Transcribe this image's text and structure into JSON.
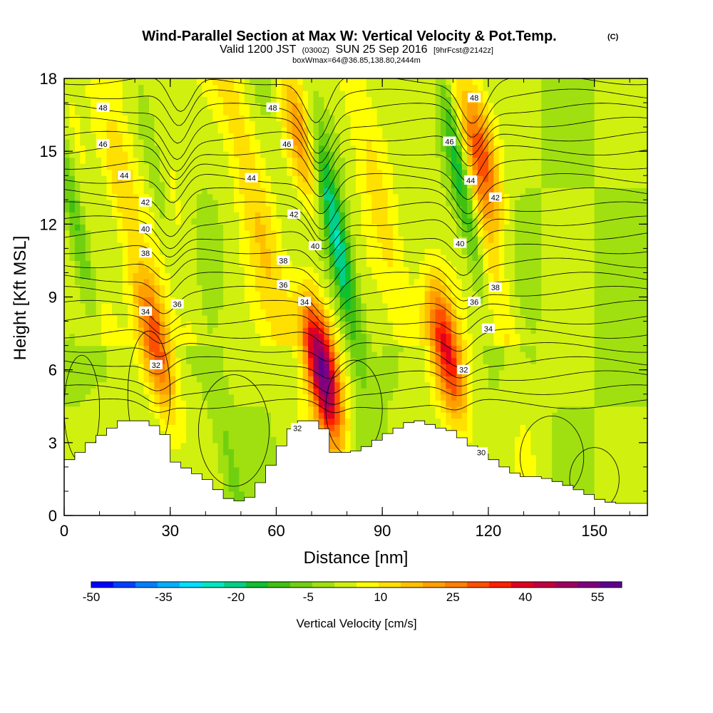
{
  "chart_data": {
    "type": "heatmap",
    "title": "Wind-Parallel Section at Max W: Vertical Velocity & Pot.Temp.",
    "title_mark": "(C)",
    "subtitle_parts": [
      "Valid 1200 JST",
      "(0300Z)",
      "SUN 25 Sep 2016",
      "[9hrFcst@2142z]"
    ],
    "info_line": "boxWmax=64@36.85,138.80,2444m",
    "xlabel": "Distance [nm]",
    "ylabel": "Height [Kft MSL]",
    "xlim": [
      0,
      165
    ],
    "ylim": [
      0,
      18
    ],
    "x_ticks": [
      "0",
      "30",
      "60",
      "90",
      "120",
      "150"
    ],
    "y_ticks": [
      "0",
      "3",
      "6",
      "9",
      "12",
      "15",
      "18"
    ],
    "colorbar": {
      "label": "Vertical Velocity [cm/s]",
      "range": [
        -50,
        60
      ],
      "step": 5,
      "tick_labels": [
        "-50",
        "-35",
        "-20",
        "-5",
        "10",
        "25",
        "40",
        "55"
      ],
      "colors": [
        "#0000ff",
        "#0040ff",
        "#0080ff",
        "#00b0ff",
        "#00e0ff",
        "#00e8c0",
        "#00d088",
        "#10c030",
        "#40c010",
        "#70d010",
        "#a0e010",
        "#d0f010",
        "#ffff00",
        "#ffe000",
        "#ffc000",
        "#ffa000",
        "#ff8000",
        "#ff5000",
        "#ff2000",
        "#e00020",
        "#c00040",
        "#a00060",
        "#800080",
        "#600090"
      ]
    },
    "terrain_kft": [
      [
        0,
        2.3
      ],
      [
        3,
        2.6
      ],
      [
        6,
        3.0
      ],
      [
        9,
        3.3
      ],
      [
        12,
        3.6
      ],
      [
        15,
        3.9
      ],
      [
        22,
        3.9
      ],
      [
        25,
        3.6
      ],
      [
        28,
        3.2
      ],
      [
        30,
        2.2
      ],
      [
        35,
        1.8
      ],
      [
        40,
        1.4
      ],
      [
        43,
        0.9
      ],
      [
        46,
        0.6
      ],
      [
        50,
        0.6
      ],
      [
        52,
        0.9
      ],
      [
        56,
        1.8
      ],
      [
        59,
        2.6
      ],
      [
        62,
        3.4
      ],
      [
        65,
        3.9
      ],
      [
        70,
        3.9
      ],
      [
        73,
        3.4
      ],
      [
        75,
        2.6
      ],
      [
        80,
        2.6
      ],
      [
        85,
        2.9
      ],
      [
        89,
        3.3
      ],
      [
        93,
        3.6
      ],
      [
        97,
        3.9
      ],
      [
        101,
        3.9
      ],
      [
        103,
        3.6
      ],
      [
        107,
        3.6
      ],
      [
        110,
        3.3
      ],
      [
        113,
        3.0
      ],
      [
        116,
        2.6
      ],
      [
        120,
        2.3
      ],
      [
        124,
        1.9
      ],
      [
        128,
        1.6
      ],
      [
        132,
        1.6
      ],
      [
        136,
        1.5
      ],
      [
        140,
        1.3
      ],
      [
        145,
        1.0
      ],
      [
        148,
        0.8
      ],
      [
        151,
        0.6
      ],
      [
        155,
        0.5
      ],
      [
        159,
        0.5
      ],
      [
        165,
        0.5
      ]
    ],
    "updraft_cores": [
      {
        "x": 73,
        "z": 6.0,
        "w": 62
      },
      {
        "x": 108,
        "z": 6.8,
        "w": 40
      },
      {
        "x": 26,
        "z": 7.0,
        "w": 32
      },
      {
        "x": 118,
        "z": 15.0,
        "w": 28
      },
      {
        "x": 67,
        "z": 15.5,
        "w": 22
      },
      {
        "x": 16,
        "z": 14.0,
        "w": 15
      }
    ],
    "downdraft_bands": [
      {
        "x": 2,
        "z": 13.0,
        "w": -24
      },
      {
        "x": 26,
        "z": 14.0,
        "w": -14
      },
      {
        "x": 77,
        "z": 11.5,
        "w": -28
      },
      {
        "x": 112,
        "z": 14.0,
        "w": -28
      },
      {
        "x": 45,
        "z": 3.2,
        "w": -8
      }
    ],
    "theta_labels": [
      {
        "text": "48",
        "x": 11,
        "z": 16.8
      },
      {
        "text": "46",
        "x": 11,
        "z": 15.3
      },
      {
        "text": "44",
        "x": 17,
        "z": 14.0
      },
      {
        "text": "42",
        "x": 23,
        "z": 12.9
      },
      {
        "text": "40",
        "x": 23,
        "z": 11.8
      },
      {
        "text": "38",
        "x": 23,
        "z": 10.8
      },
      {
        "text": "34",
        "x": 23,
        "z": 8.4
      },
      {
        "text": "36",
        "x": 32,
        "z": 8.7
      },
      {
        "text": "32",
        "x": 26,
        "z": 6.2
      },
      {
        "text": "48",
        "x": 59,
        "z": 16.8
      },
      {
        "text": "46",
        "x": 63,
        "z": 15.3
      },
      {
        "text": "44",
        "x": 53,
        "z": 13.9
      },
      {
        "text": "42",
        "x": 65,
        "z": 12.4
      },
      {
        "text": "40",
        "x": 71,
        "z": 11.1
      },
      {
        "text": "38",
        "x": 62,
        "z": 10.5
      },
      {
        "text": "36",
        "x": 62,
        "z": 9.5
      },
      {
        "text": "34",
        "x": 68,
        "z": 8.8
      },
      {
        "text": "32",
        "x": 66,
        "z": 3.6
      },
      {
        "text": "48",
        "x": 116,
        "z": 17.2
      },
      {
        "text": "46",
        "x": 109,
        "z": 15.4
      },
      {
        "text": "44",
        "x": 115,
        "z": 13.8
      },
      {
        "text": "42",
        "x": 122,
        "z": 13.1
      },
      {
        "text": "40",
        "x": 112,
        "z": 11.2
      },
      {
        "text": "38",
        "x": 122,
        "z": 9.4
      },
      {
        "text": "36",
        "x": 116,
        "z": 8.8
      },
      {
        "text": "34",
        "x": 120,
        "z": 7.7
      },
      {
        "text": "32",
        "x": 113,
        "z": 6.0
      },
      {
        "text": "30",
        "x": 118,
        "z": 2.6
      }
    ]
  }
}
